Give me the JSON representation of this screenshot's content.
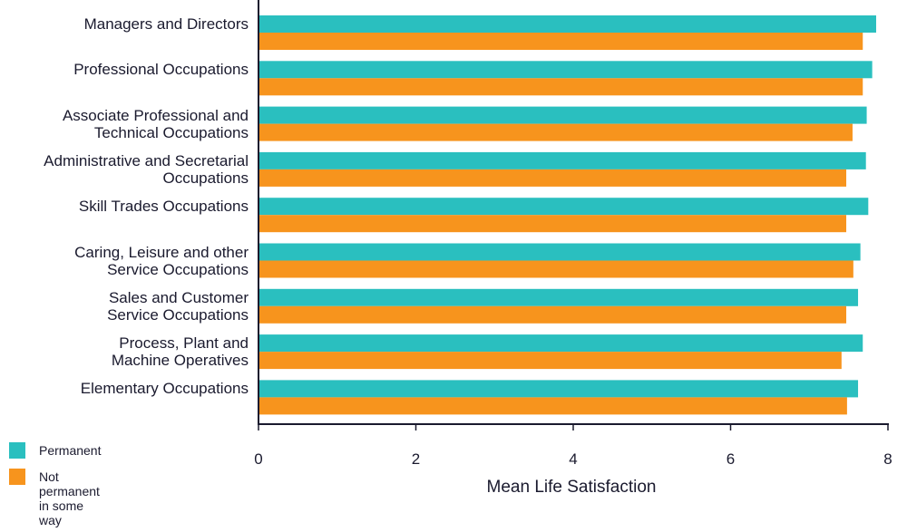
{
  "chart_data": {
    "type": "bar",
    "orientation": "horizontal",
    "categories": [
      "Managers and Directors",
      "Professional Occupations",
      "Associate Professional and\nTechnical Occupations",
      "Administrative and Secretarial\nOccupations",
      "Skill Trades Occupations",
      "Caring, Leisure and other\nService Occupations",
      "Sales and Customer\nService Occupations",
      "Process, Plant and\nMachine Operatives",
      "Elementary Occupations"
    ],
    "series": [
      {
        "name": "Permanent",
        "color": "#2abfbf",
        "values": [
          7.85,
          7.8,
          7.73,
          7.72,
          7.75,
          7.65,
          7.62,
          7.68,
          7.62
        ]
      },
      {
        "name": "Not permanent\nin some way",
        "color": "#f7941d",
        "values": [
          7.68,
          7.68,
          7.55,
          7.47,
          7.47,
          7.56,
          7.47,
          7.41,
          7.48
        ]
      }
    ],
    "xlabel": "Mean Life Satisfaction",
    "xlim": [
      0,
      8
    ],
    "xticks": [
      "0",
      "2",
      "4",
      "6",
      "8"
    ],
    "grid": false,
    "legend_position": "bottom-left"
  }
}
